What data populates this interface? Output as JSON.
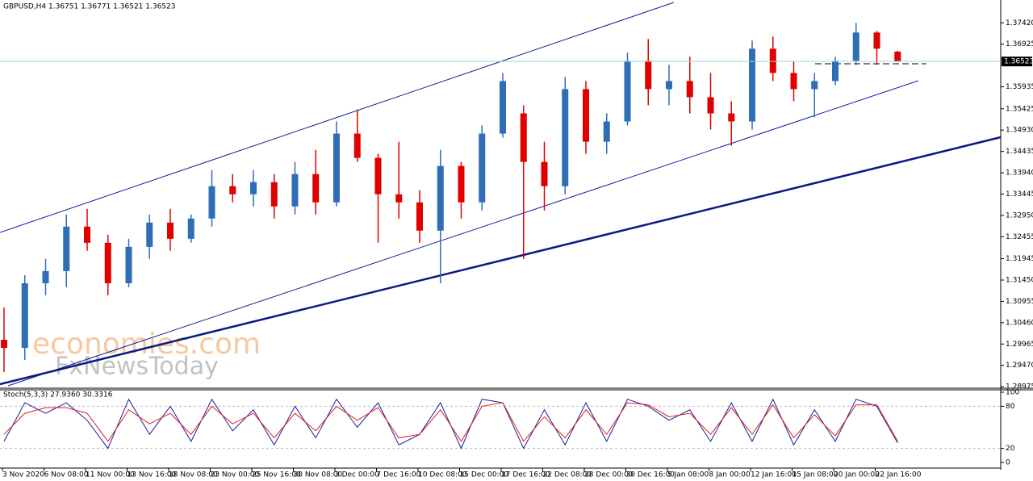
{
  "chart_data": {
    "type": "candlestick",
    "title": "GBPUSD,H4  1.36751 1.36771 1.36521 1.36523",
    "watermark": [
      "economies.com",
      "FxNewsToday"
    ],
    "categories": [
      "3 Nov 2020",
      null,
      "6 Nov 08:00",
      null,
      "11 Nov 00:00",
      null,
      "13 Nov 16:00",
      null,
      "18 Nov 08:00",
      null,
      "23 Nov 00:00",
      null,
      "25 Nov 16:00",
      null,
      "30 Nov 08:00",
      null,
      "3 Dec 00:00",
      null,
      "7 Dec 16:00",
      null,
      "10 Dec 08:00",
      null,
      "15 Dec 00:00",
      null,
      "17 Dec 16:00",
      null,
      "22 Dec 08:00",
      null,
      "28 Dec 00:00",
      null,
      "30 Dec 16:00",
      null,
      "5 Jan 08:00",
      null,
      "8 Jan 00:00",
      null,
      "12 Jan 16:00",
      null,
      "15 Jan 08:00",
      null,
      "20 Jan 00:00",
      null,
      "22 Jan 16:00",
      null
    ],
    "open": [
      1.30063,
      1.29875,
      1.31376,
      1.31658,
      1.3269,
      1.32315,
      1.31376,
      1.32221,
      1.32784,
      1.32409,
      1.32878,
      1.33629,
      1.33441,
      1.33723,
      1.33159,
      1.3391,
      1.33253,
      1.34849,
      1.34286,
      1.33441,
      1.33253,
      1.32597,
      1.34098,
      1.33253,
      1.34849,
      1.35318,
      1.34192,
      1.33629,
      1.35881,
      1.34661,
      1.35131,
      1.36538,
      1.35881,
      1.36069,
      1.35694,
      1.35318,
      1.35131,
      1.3682,
      1.36257,
      1.35881,
      1.36069,
      1.36538,
      1.37195,
      1.36751
    ],
    "high": [
      1.30813,
      1.31564,
      1.3194,
      1.32972,
      1.33103,
      1.32503,
      1.32409,
      1.32972,
      1.33103,
      1.32972,
      1.34004,
      1.3391,
      1.34004,
      1.3391,
      1.34192,
      1.34473,
      1.35131,
      1.35412,
      1.3438,
      1.34661,
      1.33535,
      1.34473,
      1.34192,
      1.35037,
      1.36257,
      1.35506,
      1.34661,
      1.36163,
      1.36069,
      1.35318,
      1.36726,
      1.37045,
      1.36444,
      1.36632,
      1.36257,
      1.356,
      1.37008,
      1.37101,
      1.36538,
      1.36257,
      1.36632,
      1.3742,
      1.37233,
      1.36771
    ],
    "low": [
      1.29312,
      1.29593,
      1.31095,
      1.31282,
      1.32128,
      1.31095,
      1.31282,
      1.3194,
      1.32128,
      1.32315,
      1.3269,
      1.33253,
      1.33159,
      1.32878,
      1.32972,
      1.32972,
      1.33159,
      1.34192,
      1.32315,
      1.32878,
      1.32315,
      1.31376,
      1.32878,
      1.33066,
      1.34755,
      1.3194,
      1.33066,
      1.33441,
      1.3438,
      1.3438,
      1.35037,
      1.35506,
      1.35506,
      1.35318,
      1.34943,
      1.34567,
      1.34943,
      1.36069,
      1.356,
      1.35224,
      1.35975,
      1.36444,
      1.36444,
      1.36521
    ],
    "close": [
      1.29875,
      1.31376,
      1.31658,
      1.3269,
      1.32315,
      1.31376,
      1.32221,
      1.32784,
      1.32409,
      1.32878,
      1.33629,
      1.33441,
      1.33723,
      1.33159,
      1.3391,
      1.33253,
      1.34849,
      1.34286,
      1.33441,
      1.33253,
      1.32597,
      1.34098,
      1.33253,
      1.34849,
      1.36069,
      1.34192,
      1.33629,
      1.35881,
      1.34661,
      1.35131,
      1.36538,
      1.35881,
      1.36069,
      1.35694,
      1.35318,
      1.35131,
      1.3682,
      1.36257,
      1.35881,
      1.36069,
      1.36538,
      1.37195,
      1.3682,
      1.36523
    ],
    "up_color": "#2f6db5",
    "down_color": "#e00000",
    "current_price": 1.36523,
    "ylim": [
      1.2894,
      1.3795
    ],
    "yticks": [
      {
        "value": 1.3742,
        "label": "1.37420"
      },
      {
        "value": 1.36925,
        "label": "1.36925"
      },
      {
        "value": 1.35935,
        "label": "1.35935"
      },
      {
        "value": 1.35425,
        "label": "1.35425"
      },
      {
        "value": 1.3493,
        "label": "1.34930"
      },
      {
        "value": 1.34435,
        "label": "1.34435"
      },
      {
        "value": 1.3394,
        "label": "1.33940"
      },
      {
        "value": 1.33445,
        "label": "1.33445"
      },
      {
        "value": 1.3295,
        "label": "1.32950"
      },
      {
        "value": 1.32455,
        "label": "1.32455"
      },
      {
        "value": 1.31945,
        "label": "1.31945"
      },
      {
        "value": 1.3145,
        "label": "1.31450"
      },
      {
        "value": 1.30955,
        "label": "1.30955"
      },
      {
        "value": 1.3046,
        "label": "1.30460"
      },
      {
        "value": 1.29965,
        "label": "1.29965"
      },
      {
        "value": 1.2947,
        "label": "1.29470"
      },
      {
        "value": 1.28975,
        "label": "1.28975"
      }
    ],
    "indicator": {
      "title": "Stoch(5,3,3) 27.9360 30.3316",
      "ylim": [
        0,
        100
      ],
      "yticks": [
        100,
        80,
        20,
        0
      ],
      "levels": [
        80,
        20
      ],
      "series": [
        {
          "color": "#1a1aa0",
          "values": [
            30,
            85,
            70,
            85,
            60,
            20,
            90,
            40,
            80,
            30,
            90,
            45,
            75,
            25,
            80,
            35,
            90,
            50,
            85,
            25,
            40,
            85,
            20,
            90,
            85,
            20,
            75,
            25,
            85,
            30,
            90,
            80,
            60,
            75,
            30,
            85,
            30,
            90,
            25,
            75,
            30,
            90,
            80,
            27.936
          ]
        },
        {
          "color": "#e02020",
          "values": [
            40,
            70,
            78,
            78,
            70,
            30,
            75,
            55,
            70,
            40,
            80,
            55,
            70,
            35,
            70,
            45,
            80,
            60,
            78,
            35,
            40,
            75,
            30,
            80,
            85,
            30,
            65,
            35,
            75,
            40,
            85,
            82,
            65,
            70,
            40,
            78,
            40,
            82,
            35,
            68,
            38,
            82,
            82,
            30.3316
          ]
        }
      ]
    }
  }
}
